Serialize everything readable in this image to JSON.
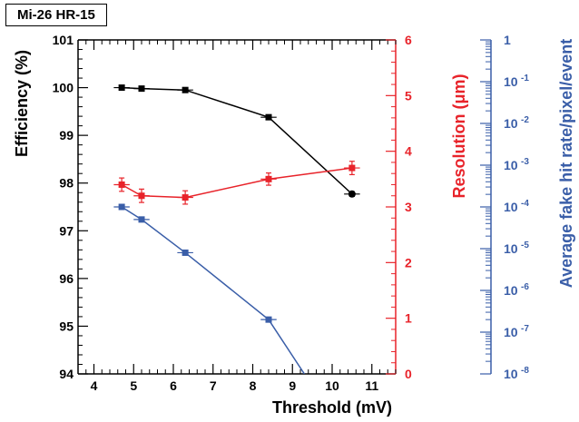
{
  "chart_data": {
    "type": "line",
    "title": "Mi-26 HR-15",
    "xlabel": "Threshold (mV)",
    "xlim": [
      3.6,
      11.6
    ],
    "xticks": [
      "4",
      "5",
      "6",
      "7",
      "8",
      "9",
      "10",
      "11"
    ],
    "axes": {
      "efficiency": {
        "label": "Efficiency (%)",
        "color": "#000000",
        "ylim": [
          94,
          101
        ],
        "ticks": [
          "94",
          "95",
          "96",
          "97",
          "98",
          "99",
          "100",
          "101"
        ]
      },
      "resolution": {
        "label": "Resolution (μm)",
        "color": "#e8232a",
        "ylim": [
          0,
          6
        ],
        "ticks": [
          "0",
          "1",
          "2",
          "3",
          "4",
          "5",
          "6"
        ]
      },
      "fake_rate": {
        "label": "Average fake hit rate/pixel/event",
        "color": "#3a5ea8",
        "scale": "log",
        "ylim": [
          1e-08,
          1
        ],
        "ticks": [
          "1",
          "10",
          "10",
          "10",
          "10",
          "10",
          "10",
          "10",
          "10"
        ],
        "tick_exponents": [
          "",
          "-1",
          "-2",
          "-3",
          "-4",
          "-5",
          "-6",
          "-7",
          "-8"
        ]
      }
    },
    "series": [
      {
        "axis": "efficiency",
        "x": [
          4.7,
          5.2,
          6.3,
          8.4,
          10.5
        ],
        "y": [
          100.0,
          99.98,
          99.95,
          99.38,
          97.77
        ],
        "yerr": [
          0.0,
          0.0,
          0.0,
          0.0,
          0.05
        ]
      },
      {
        "axis": "resolution",
        "x": [
          4.7,
          5.2,
          6.3,
          8.4,
          10.5
        ],
        "y": [
          3.4,
          3.2,
          3.17,
          3.5,
          3.7
        ],
        "yerr": [
          0.12,
          0.12,
          0.12,
          0.11,
          0.12
        ]
      },
      {
        "axis": "fake_rate",
        "x": [
          4.7,
          5.2,
          6.3,
          8.4,
          9.3
        ],
        "y": [
          0.0001,
          5e-05,
          8e-06,
          2e-07,
          1e-08
        ],
        "yerr": [
          0,
          0,
          0,
          0,
          0
        ],
        "markers": [
          true,
          true,
          true,
          true,
          false
        ]
      }
    ]
  }
}
